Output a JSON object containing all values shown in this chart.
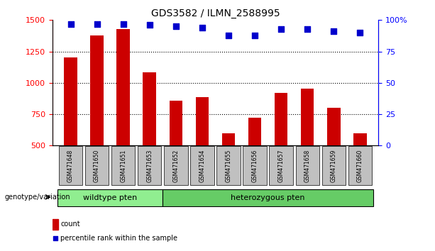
{
  "title": "GDS3582 / ILMN_2588995",
  "categories": [
    "GSM471648",
    "GSM471650",
    "GSM471651",
    "GSM471653",
    "GSM471652",
    "GSM471654",
    "GSM471655",
    "GSM471656",
    "GSM471657",
    "GSM471658",
    "GSM471659",
    "GSM471660"
  ],
  "bar_values": [
    1200,
    1380,
    1430,
    1085,
    855,
    885,
    600,
    720,
    920,
    955,
    800,
    600
  ],
  "dot_values": [
    97,
    97,
    97,
    96,
    95,
    94,
    88,
    88,
    93,
    93,
    91,
    90
  ],
  "ylim_left": [
    500,
    1500
  ],
  "ylim_right": [
    0,
    100
  ],
  "yticks_left": [
    500,
    750,
    1000,
    1250,
    1500
  ],
  "yticks_right": [
    0,
    25,
    50,
    75,
    100
  ],
  "bar_color": "#cc0000",
  "dot_color": "#0000cc",
  "wildtype_label": "wildtype pten",
  "heterozygous_label": "heterozygous pten",
  "wildtype_indices": [
    0,
    1,
    2,
    3
  ],
  "heterozygous_indices": [
    4,
    5,
    6,
    7,
    8,
    9,
    10,
    11
  ],
  "wildtype_color": "#90ee90",
  "heterozygous_color": "#66cc66",
  "bg_color": "#cccccc",
  "legend_count": "count",
  "legend_percentile": "percentile rank within the sample",
  "genotype_label": "genotype/variation"
}
